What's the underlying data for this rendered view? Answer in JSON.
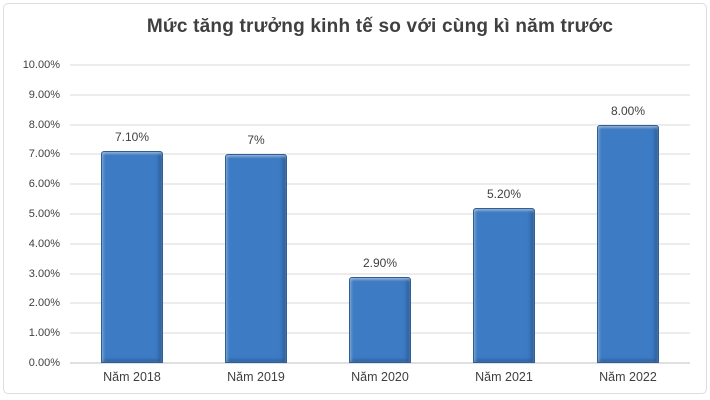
{
  "chart_data": {
    "type": "bar",
    "title": "Mức tăng trưởng kinh tế so với cùng kì năm trước",
    "categories": [
      "Năm 2018",
      "Năm 2019",
      "Năm 2020",
      "Năm 2021",
      "Năm 2022"
    ],
    "values": [
      7.1,
      7.0,
      2.9,
      5.2,
      8.0
    ],
    "data_labels": [
      "7.10%",
      "7%",
      "2.90%",
      "5.20%",
      "8.00%"
    ],
    "y_ticks": [
      "10.00%",
      "9.00%",
      "8.00%",
      "7.00%",
      "6.00%",
      "5.00%",
      "4.00%",
      "3.00%",
      "2.00%",
      "1.00%",
      "0.00%"
    ],
    "ylim": [
      0,
      10
    ],
    "grid": true,
    "legend": false,
    "colors": {
      "bar_fill": "#3d7cc4",
      "bar_border": "#2d5f9a",
      "gridline": "#d9d9d9",
      "axis_line": "#c0c0c0",
      "text": "#404040",
      "frame_border": "#dcdee3",
      "background": "#ffffff"
    }
  }
}
